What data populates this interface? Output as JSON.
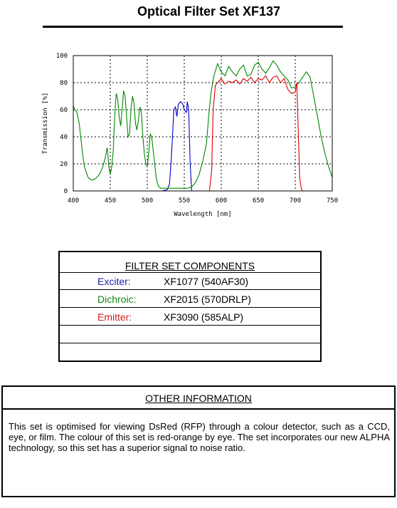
{
  "title": "Optical Filter Set XF137",
  "chart_data": {
    "type": "line",
    "xlabel": "Wavelength [nm]",
    "ylabel": "Transmission [%]",
    "xlim": [
      400,
      750
    ],
    "ylim": [
      0,
      100
    ],
    "x_ticks": [
      400,
      450,
      500,
      550,
      600,
      650,
      700,
      750
    ],
    "y_ticks": [
      0,
      20,
      40,
      60,
      80,
      100
    ],
    "grid": true,
    "series": [
      {
        "name": "Exciter",
        "color": "#0000cc",
        "x": [
          400,
          520,
          527,
          530,
          532,
          534,
          536,
          538,
          540,
          542,
          545,
          548,
          550,
          553,
          554,
          556,
          558,
          560,
          570,
          750
        ],
        "y": [
          0,
          0,
          1,
          5,
          20,
          40,
          60,
          62,
          55,
          64,
          66,
          64,
          60,
          58,
          66,
          60,
          20,
          0,
          0,
          0
        ]
      },
      {
        "name": "Dichroic",
        "color": "#008800",
        "x": [
          400,
          402,
          405,
          408,
          412,
          415,
          420,
          425,
          430,
          435,
          440,
          443,
          446,
          448,
          450,
          452,
          454,
          456,
          458,
          460,
          462,
          464,
          466,
          468,
          470,
          472,
          474,
          476,
          478,
          480,
          482,
          484,
          486,
          488,
          490,
          492,
          494,
          496,
          498,
          500,
          502,
          504,
          506,
          508,
          510,
          512,
          514,
          516,
          518,
          520,
          525,
          530,
          535,
          540,
          545,
          550,
          555,
          560,
          565,
          570,
          575,
          580,
          583,
          586,
          590,
          595,
          600,
          605,
          610,
          615,
          620,
          625,
          630,
          635,
          640,
          645,
          650,
          655,
          660,
          665,
          670,
          675,
          680,
          685,
          690,
          695,
          700,
          705,
          710,
          715,
          720,
          725,
          730,
          735,
          740,
          745,
          750
        ],
        "y": [
          63,
          60,
          58,
          50,
          30,
          18,
          10,
          8,
          9,
          12,
          18,
          24,
          32,
          18,
          12,
          18,
          30,
          55,
          72,
          68,
          55,
          48,
          60,
          74,
          70,
          55,
          40,
          42,
          60,
          70,
          65,
          50,
          45,
          52,
          62,
          58,
          40,
          28,
          20,
          18,
          28,
          42,
          40,
          30,
          20,
          10,
          5,
          3,
          2,
          2,
          2,
          2,
          2,
          2,
          2,
          2,
          2,
          3,
          6,
          12,
          22,
          35,
          55,
          72,
          85,
          94,
          88,
          85,
          92,
          88,
          85,
          90,
          93,
          85,
          86,
          93,
          95,
          90,
          87,
          91,
          96,
          93,
          88,
          85,
          82,
          76,
          77,
          80,
          84,
          88,
          84,
          70,
          55,
          40,
          28,
          18,
          10
        ]
      },
      {
        "name": "Emitter",
        "color": "#dd0000",
        "x": [
          400,
          580,
          584,
          587,
          589,
          592,
          595,
          600,
          605,
          610,
          615,
          620,
          625,
          630,
          635,
          640,
          645,
          650,
          655,
          660,
          665,
          670,
          675,
          680,
          685,
          690,
          695,
          700,
          702,
          704,
          706,
          708,
          710,
          750
        ],
        "y": [
          0,
          0,
          0,
          15,
          60,
          78,
          80,
          83,
          79,
          81,
          80,
          82,
          79,
          83,
          81,
          84,
          80,
          83,
          82,
          85,
          80,
          84,
          85,
          80,
          83,
          75,
          72,
          73,
          80,
          45,
          10,
          2,
          0,
          0
        ]
      }
    ]
  },
  "components": {
    "heading": "FILTER SET COMPONENTS",
    "rows": [
      {
        "name": "Exciter:",
        "part": "XF1077 (540AF30)",
        "color": "#2222aa"
      },
      {
        "name": "Dichroic:",
        "part": "XF2015 (570DRLP)",
        "color": "#118811"
      },
      {
        "name": "Emitter:",
        "part": "XF3090 (585ALP)",
        "color": "#cc2222"
      },
      {
        "name": "",
        "part": "",
        "color": "#000000"
      },
      {
        "name": "",
        "part": "",
        "color": "#000000"
      }
    ]
  },
  "other": {
    "heading": "OTHER INFORMATION",
    "text": "This set is optimised for viewing DsRed (RFP) through a colour detector, such as a CCD, eye, or film. The colour of this set is red-orange by eye. The set incorporates our new ALPHA technology, so this set has a superior signal to noise ratio."
  }
}
